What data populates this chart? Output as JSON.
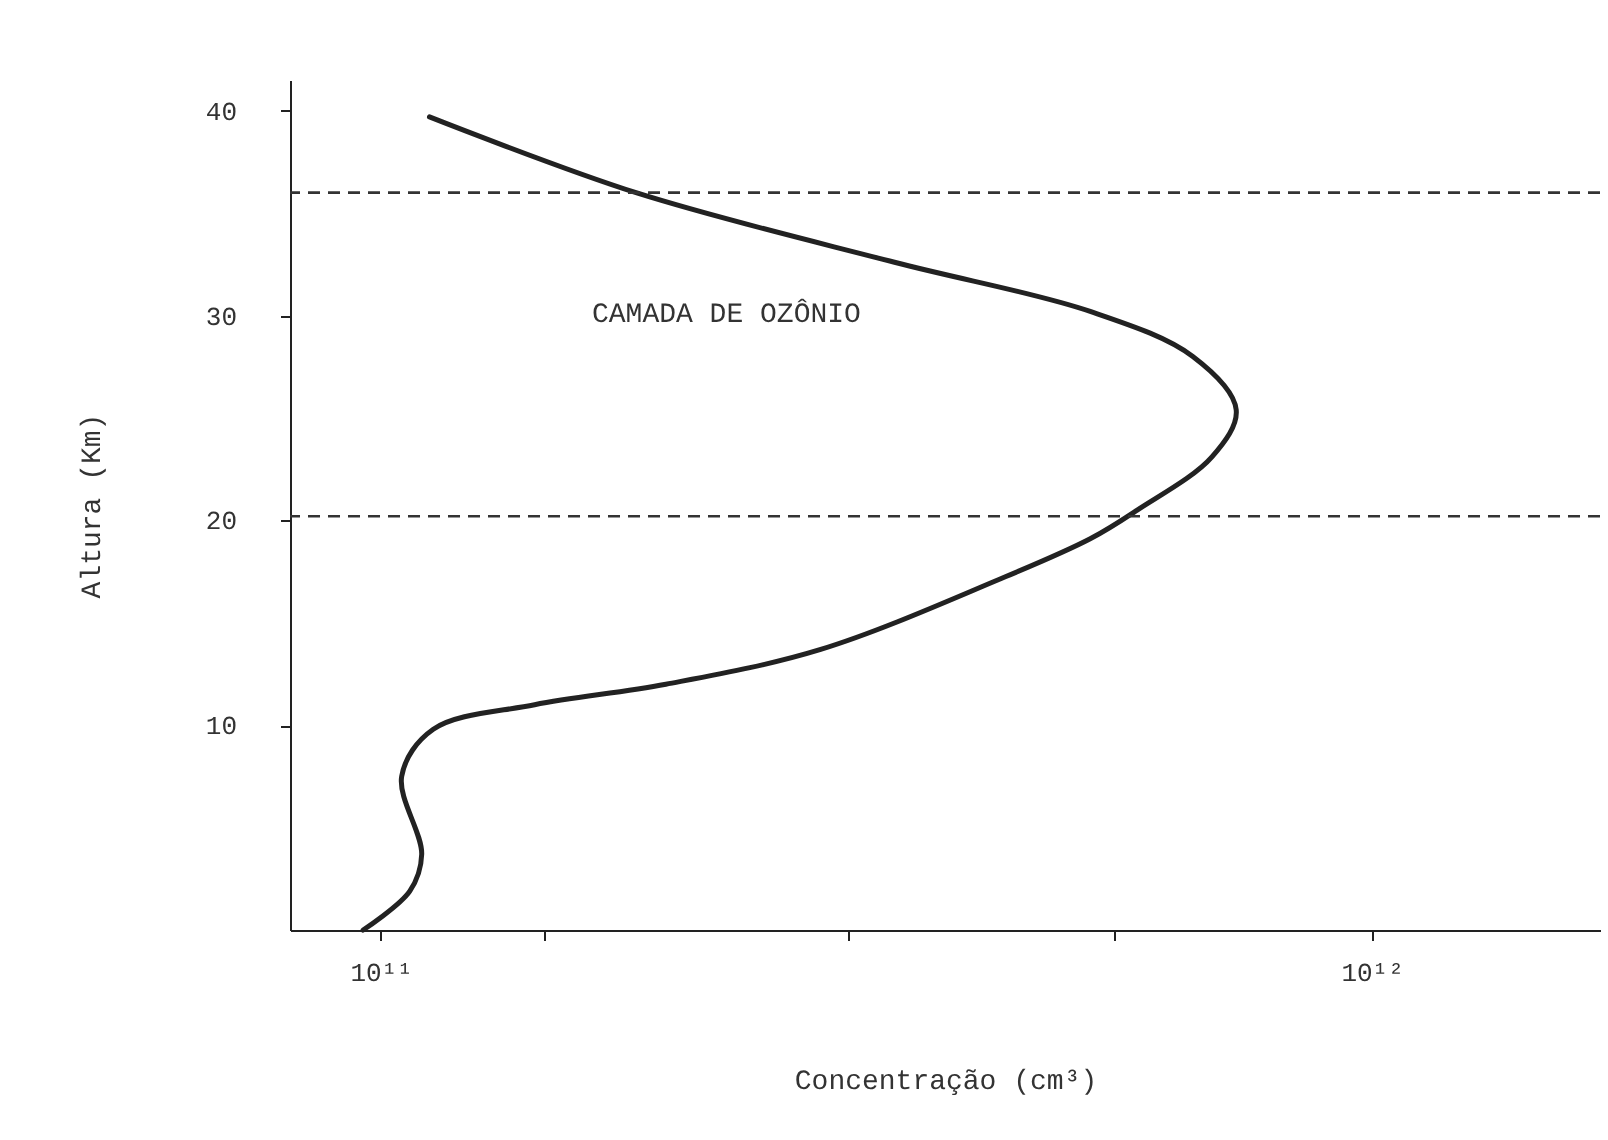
{
  "chart_data": {
    "type": "line",
    "xlabel": "Concentração (cm³)",
    "ylabel": "Altura (Km)",
    "log": "x",
    "grid": false,
    "xlim": [
      81000000000.0,
      1700000000000.0
    ],
    "ylim": [
      0,
      41.5
    ],
    "xticks": [
      {
        "value": 100000000000.0,
        "label": "10¹¹"
      },
      {
        "value": 146000000000.0,
        "label": null
      },
      {
        "value": 296000000000.0,
        "label": null
      },
      {
        "value": 550000000000.0,
        "label": null
      },
      {
        "value": 1000000000000.0,
        "label": "10¹²"
      }
    ],
    "yticks": [
      10,
      20,
      30,
      40
    ],
    "series": [
      {
        "color": "#222222",
        "x": [
          96000000000.0,
          107000000000.0,
          110000000000.0,
          105000000000.0,
          113000000000.0,
          143000000000.0,
          194000000000.0,
          278000000000.0,
          420000000000.0,
          520000000000.0,
          580000000000.0,
          690000000000.0,
          730000000000.0,
          660000000000.0,
          520000000000.0,
          330000000000.0,
          181000000000.0,
          112000000000.0
        ],
        "values": [
          0,
          1.9,
          3.7,
          7.5,
          9.8,
          11.0,
          12.0,
          13.7,
          17.1,
          19.1,
          20.5,
          23.1,
          25.4,
          28.0,
          30.2,
          32.6,
          36.0,
          39.7
        ]
      }
    ],
    "ref_lines": [
      {
        "axis": "y",
        "value": 20.2,
        "line_style": "dashed",
        "color": "#333333"
      },
      {
        "axis": "y",
        "value": 36.0,
        "line_style": "dashed",
        "color": "#333333"
      }
    ],
    "annotations": [
      "CAMADA DE OZÔNIO"
    ]
  }
}
